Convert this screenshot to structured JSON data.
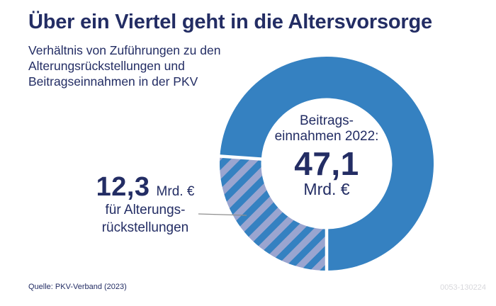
{
  "header": {
    "title": "Über ein Viertel geht in die Altersvorsorge",
    "subtitle_lines": [
      "Verhältnis von Zuführungen zu den",
      "Alterungsrückstellungen und",
      "Beitragseinnahmen in der PKV"
    ]
  },
  "chart_data": {
    "type": "pie",
    "subtype": "donut",
    "title": "Über ein Viertel geht in die Altersvorsorge",
    "total": 47.1,
    "unit": "Mrd. €",
    "center_label_lines": [
      "Beitrags-",
      "einnahmen 2022:"
    ],
    "center_value": "47,1",
    "center_unit": "Mrd. €",
    "start_angle_deg": 180,
    "direction": "clockwise",
    "segments": [
      {
        "id": "alterungsrueckstellungen",
        "value": 12.3,
        "value_display": "12,3",
        "unit": "Mrd. €",
        "style": "hatched",
        "label_lines": [
          "für Alterungs-",
          "rückstellungen"
        ]
      },
      {
        "id": "uebrige-beitragseinnahmen",
        "value": 34.8,
        "style": "solid"
      }
    ]
  },
  "footer": {
    "source": "Quelle: PKV-Verband (2023)",
    "id": "0053-130224"
  },
  "colors": {
    "navy": "#232d64",
    "blue": "#3581c1",
    "lavender": "#9aa5d0",
    "separator_white": "#ffffff",
    "connector_gray": "#8f8f8f",
    "id_gray": "#d8d8dc"
  }
}
